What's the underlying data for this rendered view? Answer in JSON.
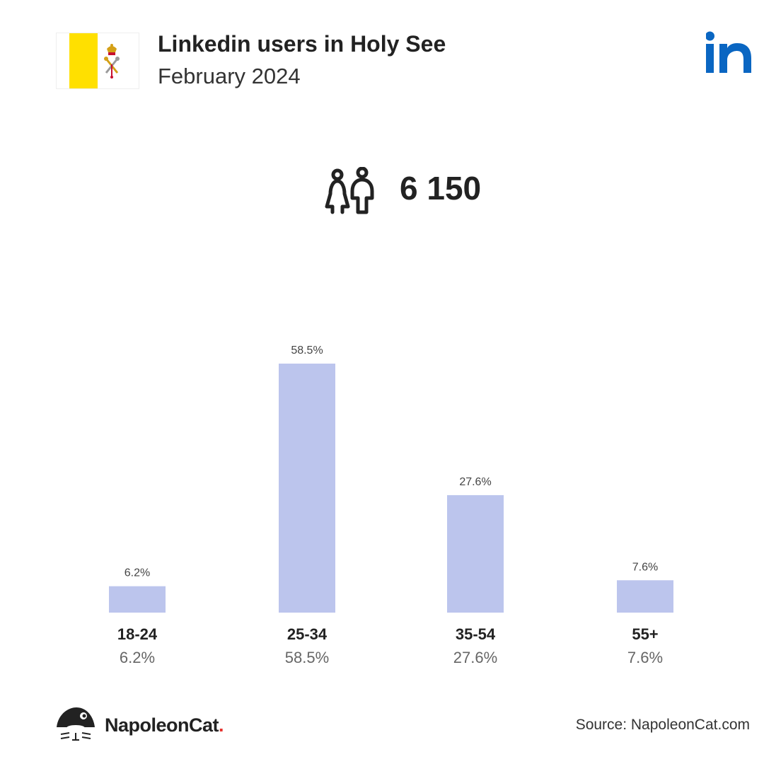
{
  "header": {
    "title": "Linkedin users in Holy See",
    "subtitle": "February 2024"
  },
  "summary": {
    "total_users": "6 150"
  },
  "chart_data": {
    "type": "bar",
    "categories": [
      "18-24",
      "25-34",
      "35-54",
      "55+"
    ],
    "values": [
      6.2,
      58.5,
      27.6,
      7.6
    ],
    "value_labels": [
      "6.2%",
      "58.5%",
      "27.6%",
      "7.6%"
    ],
    "ylim": [
      0,
      58.5
    ],
    "grid": false,
    "bar_color": "#bcc5ed"
  },
  "footer": {
    "brand_name": "NapoleonCat",
    "brand_dot": ".",
    "source": "Source: NapoleonCat.com"
  },
  "colors": {
    "linkedin_blue": "#0a66c2",
    "flag_yellow": "#ffe000",
    "bar": "#bcc5ed"
  },
  "icons": {
    "flag": "holy-see-flag-icon",
    "brand": "linkedin-logo-icon",
    "users": "users-icon",
    "footer_logo": "napoleoncat-logo-icon"
  }
}
